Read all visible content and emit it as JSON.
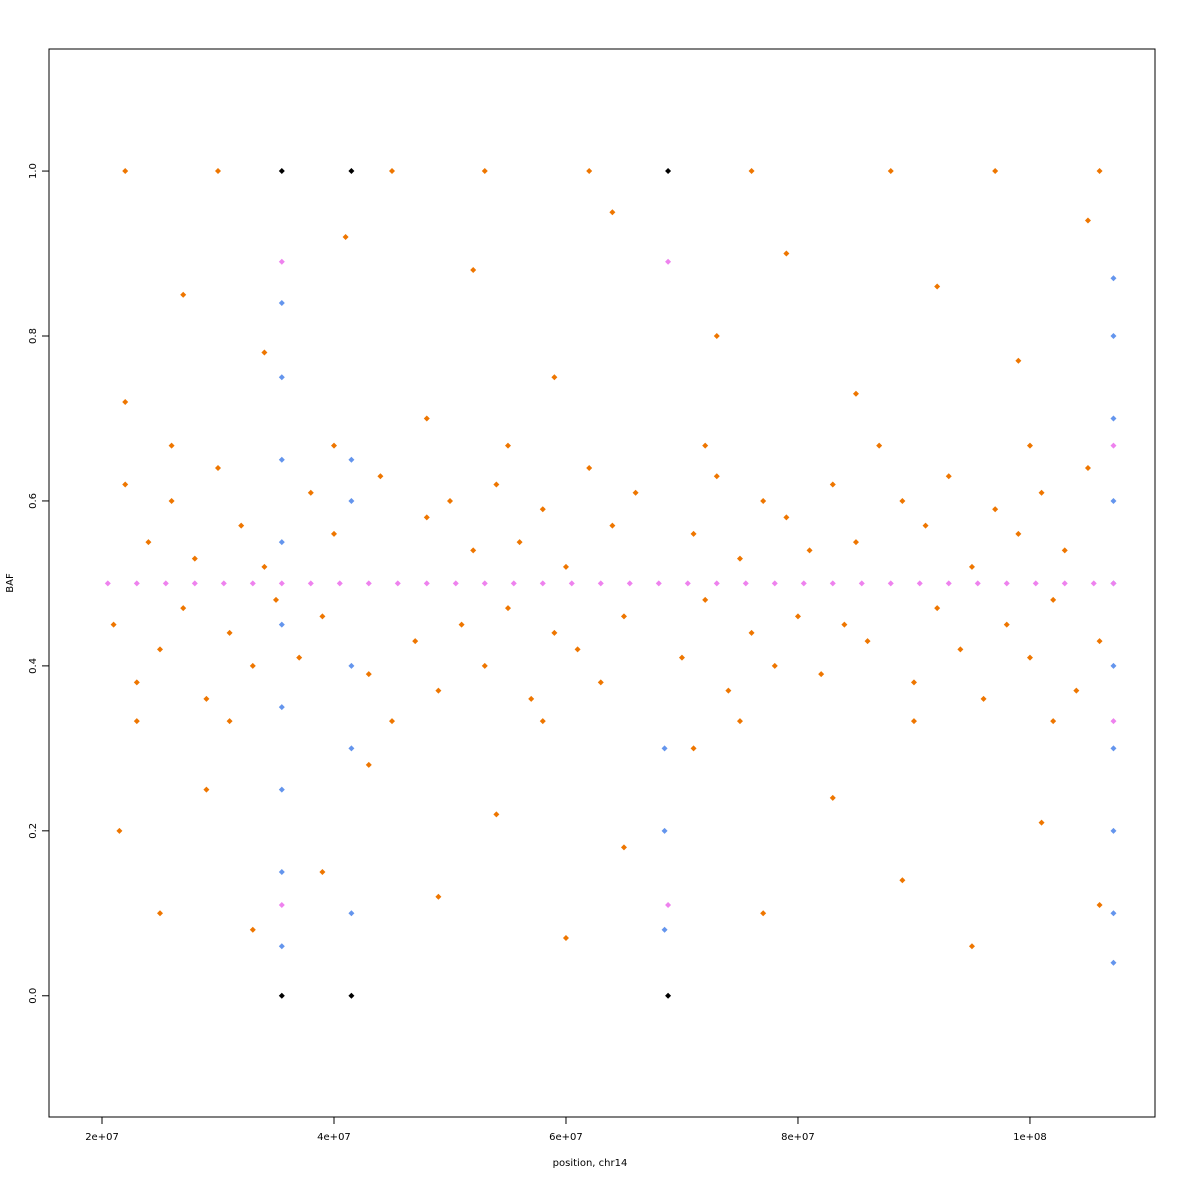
{
  "chart_data": {
    "type": "scatter",
    "xlabel": "position, chr14",
    "ylabel": "BAF",
    "xlim": [
      15430000,
      110780000
    ],
    "ylim": [
      -0.147,
      1.148
    ],
    "xticks": [
      {
        "value": 20000000.0,
        "label": "2e+07"
      },
      {
        "value": 40000000.0,
        "label": "4e+07"
      },
      {
        "value": 60000000.0,
        "label": "6e+07"
      },
      {
        "value": 80000000.0,
        "label": "8e+07"
      },
      {
        "value": 100000000.0,
        "label": "1e+08"
      }
    ],
    "yticks": [
      {
        "value": 0,
        "label": "0.0"
      },
      0.2,
      0.4,
      0.6,
      0.8,
      {
        "value": 1,
        "label": "1.0"
      }
    ],
    "series": [
      {
        "color": "#ee7600",
        "x": [
          21000000.0,
          22000000.0,
          23000000.0,
          24000000.0,
          25000000.0,
          26000000.0,
          27000000.0,
          28000000.0,
          29000000.0,
          30000000.0,
          31000000.0,
          32000000.0,
          33000000.0,
          34000000.0,
          35000000.0,
          37000000.0,
          38000000.0,
          39000000.0,
          40000000.0,
          43000000.0,
          44000000.0,
          47000000.0,
          48000000.0,
          49000000.0,
          50000000.0,
          51000000.0,
          52000000.0,
          53000000.0,
          54000000.0,
          55000000.0,
          56000000.0,
          57000000.0,
          58000000.0,
          59000000.0,
          60000000.0,
          61000000.0,
          62000000.0,
          63000000.0,
          64000000.0,
          65000000.0,
          66000000.0,
          70000000.0,
          71000000.0,
          72000000.0,
          73000000.0,
          74000000.0,
          75000000.0,
          76000000.0,
          77000000.0,
          78000000.0,
          79000000.0,
          80000000.0,
          81000000.0,
          82000000.0,
          83000000.0,
          84000000.0,
          85000000.0,
          86000000.0,
          89000000.0,
          90000000.0,
          91000000.0,
          92000000.0,
          93000000.0,
          94000000.0,
          95000000.0,
          96000000.0,
          97000000.0,
          98000000.0,
          99000000.0,
          100000000.0,
          101000000.0,
          102000000.0,
          103000000.0,
          104000000.0,
          105000000.0,
          106000000.0,
          23000000.0,
          31000000.0,
          45000000.0,
          58000000.0,
          75000000.0,
          90000000.0,
          102000000.0,
          26000000.0,
          40000000.0,
          55000000.0,
          72000000.0,
          87000000.0,
          100000000.0,
          22000000.0,
          30000000.0,
          45000000.0,
          53000000.0,
          62000000.0,
          76000000.0,
          88000000.0,
          97000000.0,
          106000000.0,
          21500000.0,
          25000000.0,
          29000000.0,
          33000000.0,
          39000000.0,
          43000000.0,
          49000000.0,
          54000000.0,
          60000000.0,
          65000000.0,
          71000000.0,
          77000000.0,
          83000000.0,
          89000000.0,
          95000000.0,
          101000000.0,
          106000000.0,
          22000000.0,
          27000000.0,
          34000000.0,
          41000000.0,
          48000000.0,
          52000000.0,
          59000000.0,
          64000000.0,
          73000000.0,
          79000000.0,
          85000000.0,
          92000000.0,
          99000000.0,
          105000000.0
        ],
        "y": [
          0.45,
          0.62,
          0.38,
          0.55,
          0.42,
          0.6,
          0.47,
          0.53,
          0.36,
          0.64,
          0.44,
          0.57,
          0.4,
          0.52,
          0.48,
          0.41,
          0.61,
          0.46,
          0.56,
          0.39,
          0.63,
          0.43,
          0.58,
          0.37,
          0.6,
          0.45,
          0.54,
          0.4,
          0.62,
          0.47,
          0.55,
          0.36,
          0.59,
          0.44,
          0.52,
          0.42,
          0.64,
          0.38,
          0.57,
          0.46,
          0.61,
          0.41,
          0.56,
          0.48,
          0.63,
          0.37,
          0.53,
          0.44,
          0.6,
          0.4,
          0.58,
          0.46,
          0.54,
          0.39,
          0.62,
          0.45,
          0.55,
          0.43,
          0.6,
          0.38,
          0.57,
          0.47,
          0.63,
          0.42,
          0.52,
          0.36,
          0.59,
          0.45,
          0.56,
          0.41,
          0.61,
          0.48,
          0.54,
          0.37,
          0.64,
          0.43,
          0.333,
          0.333,
          0.333,
          0.333,
          0.333,
          0.333,
          0.333,
          0.667,
          0.667,
          0.667,
          0.667,
          0.667,
          0.667,
          1,
          1,
          1,
          1,
          1,
          1,
          1,
          1,
          1,
          0.2,
          0.1,
          0.25,
          0.08,
          0.15,
          0.28,
          0.12,
          0.22,
          0.07,
          0.18,
          0.3,
          0.1,
          0.24,
          0.14,
          0.06,
          0.21,
          0.11,
          0.72,
          0.85,
          0.78,
          0.92,
          0.7,
          0.88,
          0.75,
          0.95,
          0.8,
          0.9,
          0.73,
          0.86,
          0.77,
          0.94
        ]
      },
      {
        "color": "#6495ed",
        "x": [
          35500000.0,
          35500000.0,
          35500000.0,
          35500000.0,
          35500000.0,
          35500000.0,
          35500000.0,
          35500000.0,
          35500000.0,
          41500000.0,
          41500000.0,
          41500000.0,
          41500000.0,
          41500000.0,
          68500000.0,
          68500000.0,
          68500000.0,
          107200000.0,
          107200000.0,
          107200000.0,
          107200000.0,
          107200000.0,
          107200000.0,
          107200000.0,
          107200000.0,
          107200000.0,
          107200000.0
        ],
        "y": [
          0.06,
          0.15,
          0.25,
          0.35,
          0.45,
          0.55,
          0.65,
          0.75,
          0.84,
          0.1,
          0.3,
          0.4,
          0.6,
          0.65,
          0.08,
          0.2,
          0.3,
          0.04,
          0.1,
          0.2,
          0.3,
          0.4,
          0.5,
          0.6,
          0.7,
          0.8,
          0.87
        ]
      },
      {
        "color": "#ee82ee",
        "x": [
          20500000.0,
          23000000.0,
          25500000.0,
          28000000.0,
          30500000.0,
          33000000.0,
          35500000.0,
          38000000.0,
          40500000.0,
          43000000.0,
          45500000.0,
          48000000.0,
          50500000.0,
          53000000.0,
          55500000.0,
          58000000.0,
          60500000.0,
          63000000.0,
          65500000.0,
          68000000.0,
          70500000.0,
          73000000.0,
          75500000.0,
          78000000.0,
          80500000.0,
          83000000.0,
          85500000.0,
          88000000.0,
          90500000.0,
          93000000.0,
          95500000.0,
          98000000.0,
          100500000.0,
          103000000.0,
          105500000.0,
          107200000.0,
          35500000.0,
          35500000.0,
          68800000.0,
          68800000.0,
          107200000.0,
          107200000.0
        ],
        "y": [
          0.5,
          0.5,
          0.5,
          0.5,
          0.5,
          0.5,
          0.5,
          0.5,
          0.5,
          0.5,
          0.5,
          0.5,
          0.5,
          0.5,
          0.5,
          0.5,
          0.5,
          0.5,
          0.5,
          0.5,
          0.5,
          0.5,
          0.5,
          0.5,
          0.5,
          0.5,
          0.5,
          0.5,
          0.5,
          0.5,
          0.5,
          0.5,
          0.5,
          0.5,
          0.5,
          0.5,
          0.89,
          0.11,
          0.89,
          0.11,
          0.667,
          0.333
        ]
      },
      {
        "color": "#000000",
        "x": [
          35500000.0,
          41500000.0,
          68800000.0,
          35500000.0,
          41500000.0,
          68800000.0
        ],
        "y": [
          1,
          1,
          1,
          0,
          0,
          0
        ]
      }
    ]
  }
}
